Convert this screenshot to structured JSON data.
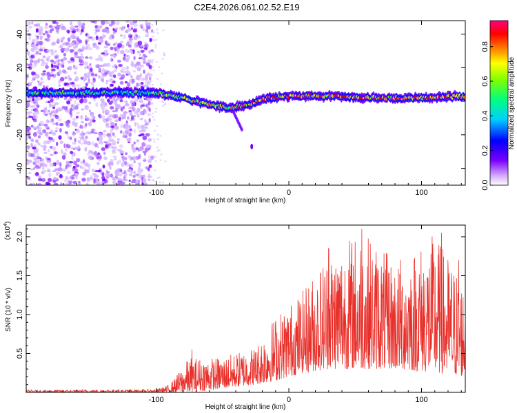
{
  "title": "C2E4.2026.061.02.52.E19",
  "chart_data": [
    {
      "type": "heatmap",
      "title": "C2E4.2026.061.02.52.E19",
      "xlabel": "Height of straight line (km)",
      "ylabel": "Frequency (Hz)",
      "xlim": [
        -198,
        133
      ],
      "ylim": [
        -50,
        48
      ],
      "xticks": [
        -100,
        0,
        100
      ],
      "xtick_labels": [
        "-100",
        "0",
        "100"
      ],
      "yticks": [
        -40,
        -20,
        0,
        20,
        40
      ],
      "ytick_labels": [
        "-40",
        "-20",
        "0",
        "20",
        "40"
      ],
      "colorbar": {
        "label": "Normalized spectral amplitude",
        "range": [
          0,
          0.95
        ],
        "ticks": [
          0,
          0.2,
          0.4,
          0.6,
          0.8
        ],
        "tick_labels": [
          "0.0",
          "0.2",
          "0.4",
          "0.6",
          "0.8"
        ],
        "colors": [
          "#ffffff",
          "#d2a7ff",
          "#7a00ff",
          "#0000ff",
          "#00d0ff",
          "#00ff7f",
          "#7fff00",
          "#ffff00",
          "#ff8000",
          "#ff0000",
          "#ff0080"
        ]
      },
      "band_center_hz": [
        {
          "x": -198,
          "f": 5
        },
        {
          "x": -160,
          "f": 5
        },
        {
          "x": -100,
          "f": 5
        },
        {
          "x": -80,
          "f": 2
        },
        {
          "x": -60,
          "f": -2
        },
        {
          "x": -45,
          "f": -4
        },
        {
          "x": -30,
          "f": -2
        },
        {
          "x": -15,
          "f": 2
        },
        {
          "x": 0,
          "f": 3
        },
        {
          "x": 20,
          "f": 3
        },
        {
          "x": 40,
          "f": 3
        },
        {
          "x": 60,
          "f": 2
        },
        {
          "x": 100,
          "f": 2
        },
        {
          "x": 133,
          "f": 3
        }
      ]
    },
    {
      "type": "line",
      "xlabel": "Height of straight line (km)",
      "ylabel": "SNR (10 * v/v)",
      "scale_label": "(x10",
      "scale_exponent": "4",
      "xlim": [
        -198,
        133
      ],
      "ylim": [
        0,
        21500
      ],
      "xticks": [
        -100,
        0,
        100
      ],
      "xtick_labels": [
        "-100",
        "0",
        "100"
      ],
      "yticks": [
        5000,
        10000,
        15000,
        20000
      ],
      "ytick_labels": [
        "0.5",
        "1.0",
        "1.5",
        "2.0"
      ],
      "color": "#e8302a",
      "envelope": [
        {
          "x": -198,
          "lo": 0,
          "hi": 300
        },
        {
          "x": -100,
          "lo": 0,
          "hi": 400
        },
        {
          "x": -90,
          "lo": 0,
          "hi": 1000
        },
        {
          "x": -75,
          "lo": 0,
          "hi": 4500
        },
        {
          "x": -50,
          "lo": 500,
          "hi": 4500
        },
        {
          "x": -25,
          "lo": 1000,
          "hi": 6000
        },
        {
          "x": -10,
          "lo": 1500,
          "hi": 10000
        },
        {
          "x": 10,
          "lo": 2500,
          "hi": 13000
        },
        {
          "x": 30,
          "lo": 3000,
          "hi": 18500
        },
        {
          "x": 55,
          "lo": 3000,
          "hi": 21000
        },
        {
          "x": 80,
          "lo": 3000,
          "hi": 17000
        },
        {
          "x": 110,
          "lo": 2500,
          "hi": 20500
        },
        {
          "x": 133,
          "lo": 2000,
          "hi": 14000
        }
      ],
      "peaks": [
        {
          "x": 55,
          "y": 21000
        },
        {
          "x": 115,
          "y": 20500
        },
        {
          "x": 128,
          "y": 17000
        },
        {
          "x": 30,
          "y": 18500
        },
        {
          "x": -73,
          "y": 5500
        }
      ]
    }
  ]
}
